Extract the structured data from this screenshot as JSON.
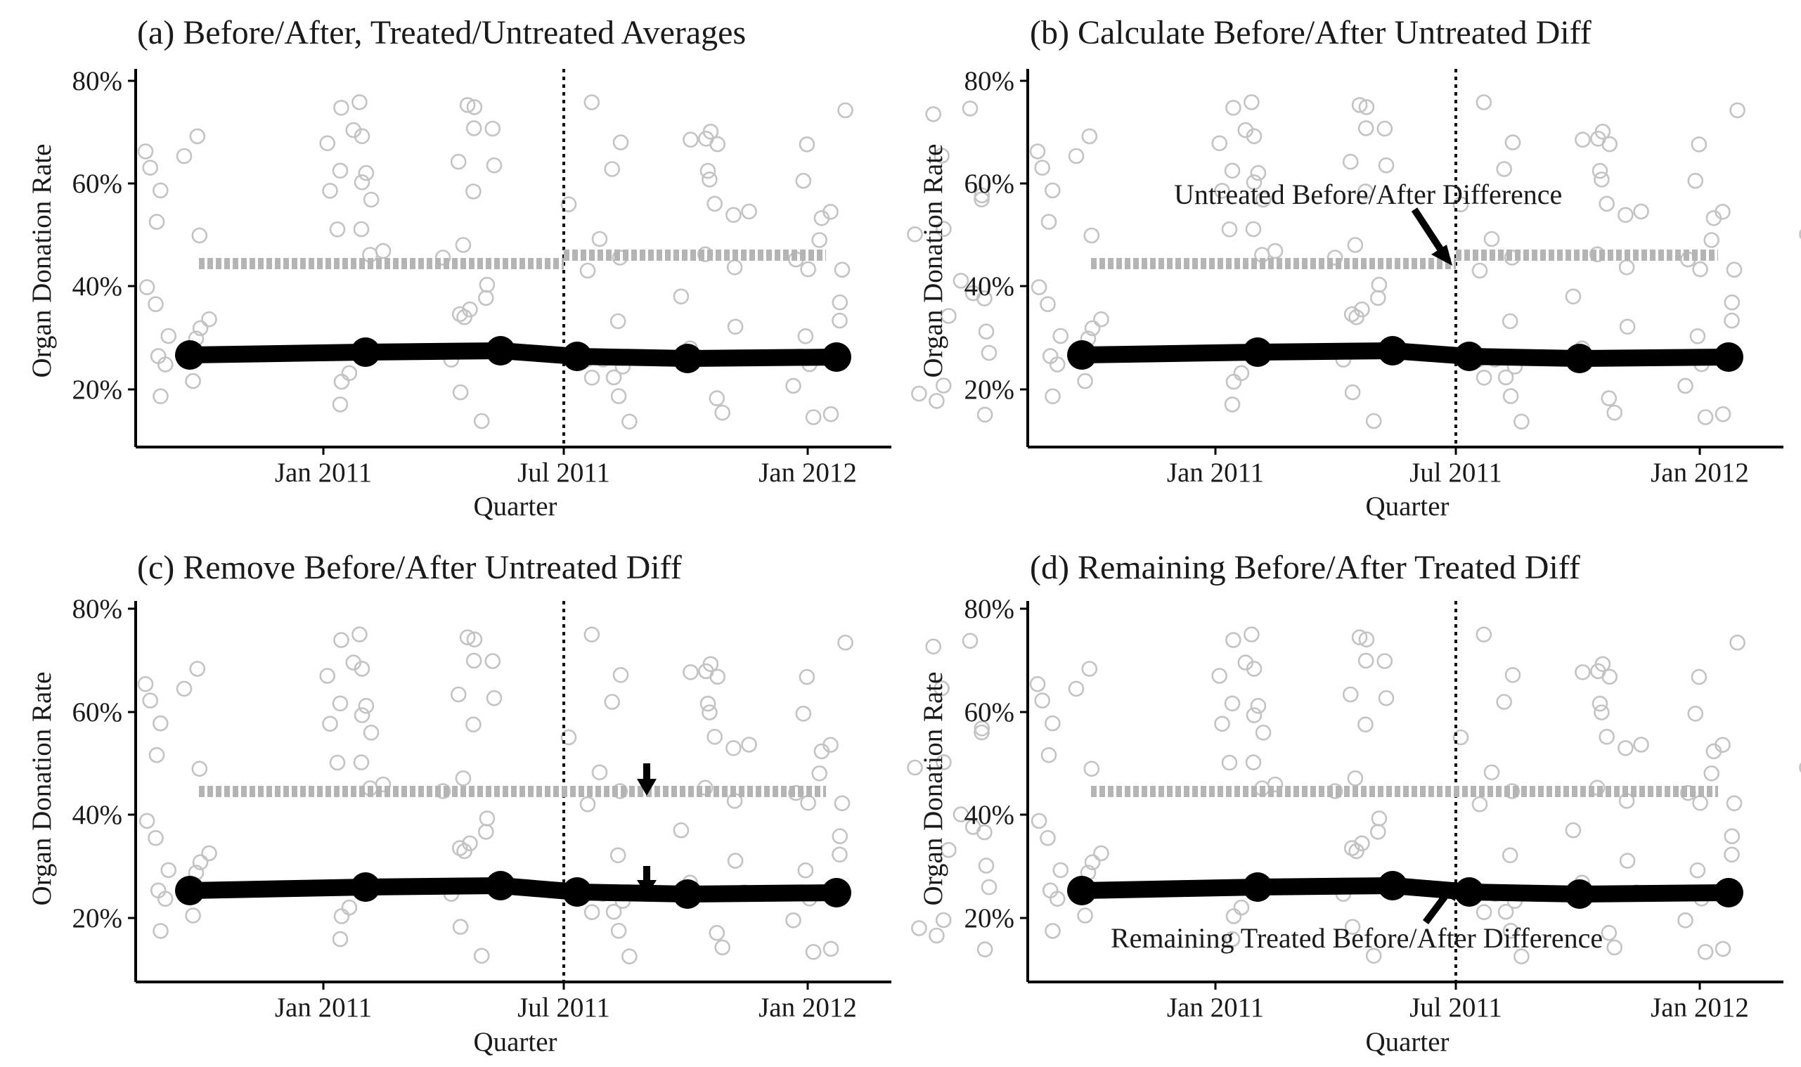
{
  "chart_data": [
    {
      "type": "scatter",
      "title": "(a) Before/After, Treated/Untreated Averages",
      "xlabel": "Quarter",
      "ylabel": "Organ Donation Rate",
      "x_ticks": [
        "Jan 2011",
        "Jul 2011",
        "Jan 2012"
      ],
      "y_ticks": [
        "20%",
        "40%",
        "60%",
        "80%"
      ],
      "ylim": [
        0.12,
        0.82
      ],
      "cutoff": "Jul 2011",
      "series": [
        {
          "quarters": [
            "Q4 2010",
            "Q1 2011",
            "Q2 2011",
            "Q3 2011",
            "Q4 2011",
            "Q1 2012"
          ],
          "values": [
            0.27,
            0.272,
            0.273,
            0.265,
            0.261,
            0.265
          ],
          "style": "treated"
        },
        {
          "segments": [
            {
              "from": "Q4 2010",
              "to": "Q2 2011",
              "value": 0.445
            },
            {
              "from": "Q3 2011",
              "to": "Q1 2012",
              "value": 0.46
            }
          ],
          "style": "untreated"
        }
      ],
      "annotations": []
    },
    {
      "type": "scatter",
      "title": "(b) Calculate Before/After Untreated Diff",
      "xlabel": "Quarter",
      "ylabel": "Organ Donation Rate",
      "x_ticks": [
        "Jan 2011",
        "Jul 2011",
        "Jan 2012"
      ],
      "y_ticks": [
        "20%",
        "40%",
        "60%",
        "80%"
      ],
      "ylim": [
        0.12,
        0.82
      ],
      "cutoff": "Jul 2011",
      "series": [
        {
          "quarters": [
            "Q4 2010",
            "Q1 2011",
            "Q2 2011",
            "Q3 2011",
            "Q4 2011",
            "Q1 2012"
          ],
          "values": [
            0.27,
            0.272,
            0.273,
            0.265,
            0.261,
            0.265
          ],
          "style": "treated"
        },
        {
          "segments": [
            {
              "from": "Q4 2010",
              "to": "Q2 2011",
              "value": 0.445
            },
            {
              "from": "Q3 2011",
              "to": "Q1 2012",
              "value": 0.46
            }
          ],
          "style": "untreated"
        }
      ],
      "annotations": [
        "Untreated Before/After Difference"
      ]
    },
    {
      "type": "scatter",
      "title": "(c) Remove Before/After Untreated Diff",
      "xlabel": "Quarter",
      "ylabel": "Organ Donation Rate",
      "x_ticks": [
        "Jan 2011",
        "Jul 2011",
        "Jan 2012"
      ],
      "y_ticks": [
        "20%",
        "40%",
        "60%",
        "80%"
      ],
      "ylim": [
        0.12,
        0.82
      ],
      "cutoff": "Jul 2011",
      "series": [
        {
          "quarters": [
            "Q4 2010",
            "Q1 2011",
            "Q2 2011",
            "Q3 2011",
            "Q4 2011",
            "Q1 2012"
          ],
          "values": [
            0.27,
            0.272,
            0.273,
            0.265,
            0.261,
            0.265
          ],
          "style": "treated"
        },
        {
          "segments": [
            {
              "from": "Q4 2010",
              "to": "Q1 2012",
              "value": 0.445
            }
          ],
          "style": "untreated"
        }
      ],
      "annotations": []
    },
    {
      "type": "scatter",
      "title": "(d) Remaining Before/After Treated Diff",
      "xlabel": "Quarter",
      "ylabel": "Organ Donation Rate",
      "x_ticks": [
        "Jan 2011",
        "Jul 2011",
        "Jan 2012"
      ],
      "y_ticks": [
        "20%",
        "40%",
        "60%",
        "80%"
      ],
      "ylim": [
        0.12,
        0.82
      ],
      "cutoff": "Jul 2011",
      "series": [
        {
          "quarters": [
            "Q4 2010",
            "Q1 2011",
            "Q2 2011",
            "Q3 2011",
            "Q4 2011",
            "Q1 2012"
          ],
          "values": [
            0.27,
            0.272,
            0.273,
            0.265,
            0.261,
            0.265
          ],
          "style": "treated"
        },
        {
          "segments": [
            {
              "from": "Q4 2010",
              "to": "Q1 2012",
              "value": 0.445
            }
          ],
          "style": "untreated"
        }
      ],
      "annotations": [
        "Remaining Treated Before/After Difference"
      ]
    }
  ]
}
